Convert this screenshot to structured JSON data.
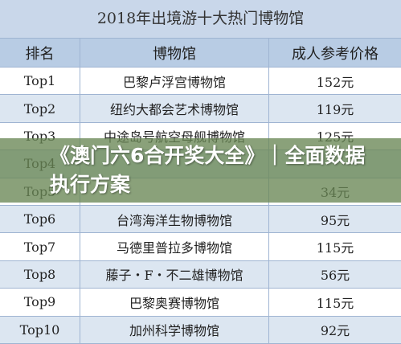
{
  "title": "2018年出境游十大热门博物馆",
  "table": {
    "header": [
      "排名",
      "博物馆",
      "成人参考价格"
    ],
    "rows": [
      [
        "Top1",
        "巴黎卢浮宫博物馆",
        "152元"
      ],
      [
        "Top2",
        "纽约大都会艺术博物馆",
        "119元"
      ],
      [
        "Top3",
        "中途岛号航空母舰博物馆",
        "125元"
      ],
      [
        "Top4"
      ],
      [
        "Top5",
        null,
        "34元"
      ],
      [
        "Top6",
        "台湾海洋生物博物馆",
        "95元"
      ],
      [
        "Top7",
        "马德里普拉多博物馆",
        "115元"
      ],
      [
        "Top8",
        "藤子・F・不二雄博物馆",
        "56元"
      ],
      [
        "Top9",
        "巴黎奥赛博物馆",
        "115元"
      ],
      [
        "Top10",
        "加州科学博物馆",
        "92元"
      ]
    ]
  },
  "banner": "《澳门六6合开奖大全》｜全面数据执行方案"
}
